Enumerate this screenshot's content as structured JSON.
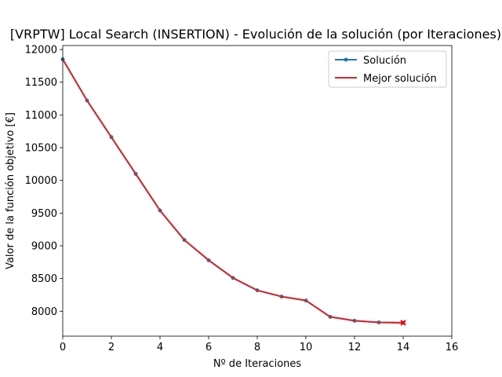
{
  "chart_data": {
    "type": "line",
    "title": "[VRPTW] Local Search (INSERTION) - Evolución de la solución (por Iteraciones)",
    "xlabel": "Nº de Iteraciones",
    "ylabel": "Valor de la función objetivo [€]",
    "xlim": [
      0,
      16
    ],
    "ylim": [
      7620,
      12060
    ],
    "x_ticks": [
      0,
      2,
      4,
      6,
      8,
      10,
      12,
      14,
      16
    ],
    "y_ticks": [
      8000,
      8500,
      9000,
      9500,
      10000,
      10500,
      11000,
      11500,
      12000
    ],
    "grid": false,
    "legend_position": "upper right",
    "x": [
      0,
      1,
      2,
      3,
      4,
      5,
      6,
      7,
      8,
      9,
      10,
      11,
      12,
      13,
      14
    ],
    "series": [
      {
        "name": "Solución",
        "color": "#1f77b4",
        "marker": "circle",
        "values": [
          11850,
          11220,
          10660,
          10100,
          9540,
          9090,
          8780,
          8510,
          8320,
          8225,
          8165,
          7915,
          7855,
          7830,
          7825
        ]
      },
      {
        "name": "Mejor solución",
        "color": "#d62728",
        "marker": "none",
        "values": [
          11850,
          11220,
          10660,
          10100,
          9540,
          9090,
          8780,
          8510,
          8320,
          8225,
          8165,
          7915,
          7855,
          7830,
          7825
        ]
      }
    ],
    "final_marker": {
      "x": 14,
      "y": 7825,
      "symbol": "x",
      "color": "#ff0000"
    }
  }
}
